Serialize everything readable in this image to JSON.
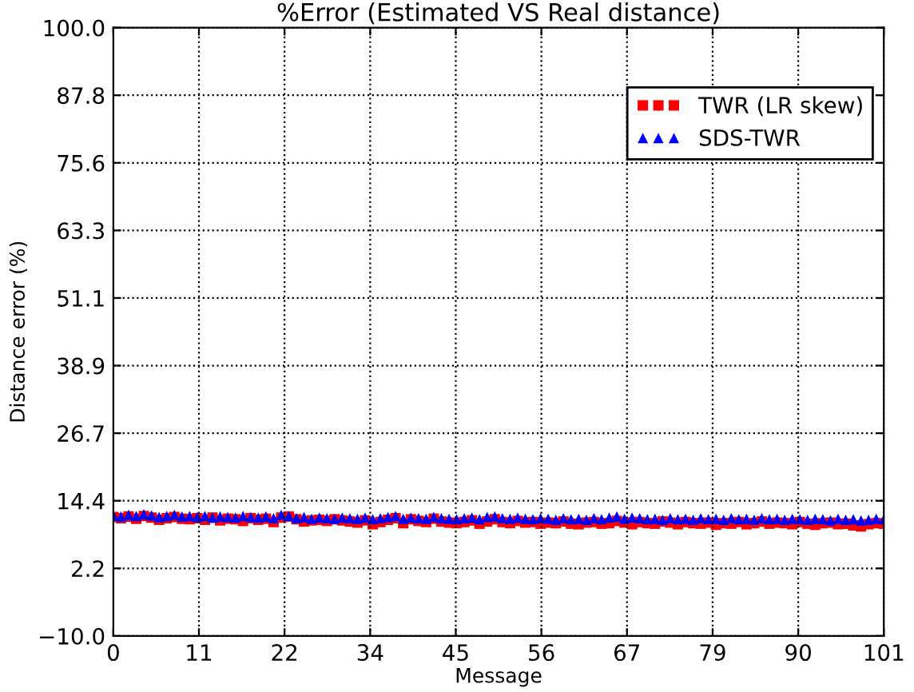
{
  "chart_data": {
    "type": "scatter",
    "title": "%Error (Estimated VS Real distance)",
    "xlabel": "Message",
    "ylabel": "Distance error (%)",
    "x": [
      0,
      1,
      2,
      3,
      4,
      5,
      6,
      7,
      8,
      9,
      10,
      11,
      12,
      13,
      14,
      15,
      16,
      17,
      18,
      19,
      20,
      21,
      22,
      23,
      24,
      25,
      26,
      27,
      28,
      29,
      30,
      31,
      32,
      33,
      34,
      35,
      36,
      37,
      38,
      39,
      40,
      41,
      42,
      43,
      44,
      45,
      46,
      47,
      48,
      49,
      50,
      51,
      52,
      53,
      54,
      55,
      56,
      57,
      58,
      59,
      60,
      61,
      62,
      63,
      64,
      65,
      66,
      67,
      68,
      69,
      70,
      71,
      72,
      73,
      74,
      75,
      76,
      77,
      78,
      79,
      80,
      81,
      82,
      83,
      84,
      85,
      86,
      87,
      88,
      89,
      90,
      91,
      92,
      93,
      94,
      95,
      96,
      97,
      98,
      99,
      100,
      101
    ],
    "series": [
      {
        "name": "TWR (LR skew)",
        "color": "#ff0000",
        "marker": "square",
        "values": [
          11.5,
          11.3,
          11.6,
          11.2,
          11.7,
          11.4,
          11.0,
          11.3,
          11.5,
          11.2,
          11.1,
          11.3,
          11.0,
          11.4,
          10.9,
          11.2,
          11.1,
          10.8,
          11.3,
          11.0,
          11.2,
          10.6,
          11.4,
          11.6,
          11.1,
          10.7,
          10.9,
          11.0,
          10.8,
          11.1,
          10.9,
          10.7,
          10.5,
          10.9,
          10.2,
          10.6,
          11.0,
          11.3,
          10.4,
          11.1,
          10.8,
          10.6,
          11.2,
          10.7,
          10.5,
          10.4,
          10.6,
          10.9,
          10.3,
          10.7,
          11.1,
          10.6,
          10.4,
          10.8,
          10.5,
          10.6,
          10.3,
          10.5,
          10.4,
          10.7,
          10.3,
          10.2,
          10.5,
          10.6,
          10.3,
          10.4,
          10.8,
          10.5,
          10.2,
          10.6,
          10.4,
          10.3,
          10.7,
          10.5,
          10.2,
          10.6,
          10.4,
          10.3,
          10.5,
          10.1,
          10.4,
          10.3,
          10.6,
          10.2,
          10.4,
          10.7,
          10.3,
          10.5,
          10.4,
          10.2,
          10.6,
          10.3,
          10.1,
          10.4,
          10.5,
          10.2,
          10.3,
          10.0,
          9.8,
          10.2,
          10.4,
          10.3
        ]
      },
      {
        "name": "SDS-TWR",
        "color": "#0000ff",
        "marker": "triangle",
        "values": [
          11.8,
          11.6,
          11.9,
          11.7,
          12.0,
          11.8,
          11.5,
          11.7,
          11.9,
          11.6,
          11.7,
          11.5,
          11.7,
          11.4,
          11.6,
          11.5,
          11.4,
          11.7,
          11.5,
          11.4,
          11.6,
          11.3,
          11.9,
          11.7,
          11.3,
          11.5,
          11.2,
          11.4,
          11.3,
          11.2,
          11.4,
          11.3,
          11.2,
          11.4,
          11.1,
          11.3,
          11.5,
          11.7,
          11.2,
          11.4,
          11.3,
          11.2,
          11.5,
          11.3,
          11.2,
          11.1,
          11.3,
          11.4,
          11.1,
          11.5,
          11.6,
          11.3,
          11.2,
          11.4,
          11.2,
          11.1,
          11.3,
          11.2,
          11.0,
          11.3,
          11.1,
          11.2,
          11.0,
          11.3,
          11.1,
          11.4,
          11.6,
          11.2,
          11.4,
          11.3,
          11.1,
          11.2,
          11.0,
          11.3,
          11.1,
          11.2,
          11.0,
          11.3,
          11.1,
          11.2,
          11.0,
          11.3,
          11.1,
          11.2,
          11.0,
          11.3,
          11.1,
          11.2,
          11.0,
          11.2,
          11.1,
          11.0,
          11.2,
          11.1,
          10.9,
          11.2,
          11.0,
          11.1,
          10.9,
          11.0,
          11.2,
          11.1
        ]
      }
    ],
    "xlim": [
      0,
      101
    ],
    "xticks": [
      0,
      {
        "value": 11.22,
        "label": "11"
      },
      {
        "value": 22.44,
        "label": "22"
      },
      {
        "value": 33.67,
        "label": "34"
      },
      {
        "value": 44.89,
        "label": "45"
      },
      {
        "value": 56.11,
        "label": "56"
      },
      {
        "value": 67.33,
        "label": "67"
      },
      {
        "value": 78.56,
        "label": "79"
      },
      {
        "value": 89.78,
        "label": "90"
      },
      101
    ],
    "ylim": [
      -10,
      100
    ],
    "yticks": [
      {
        "value": -10,
        "label": "−10.0"
      },
      {
        "value": 2.222,
        "label": "2.2"
      },
      {
        "value": 14.444,
        "label": "14.4"
      },
      {
        "value": 26.667,
        "label": "26.7"
      },
      {
        "value": 38.889,
        "label": "38.9"
      },
      {
        "value": 51.111,
        "label": "51.1"
      },
      {
        "value": 63.333,
        "label": "63.3"
      },
      {
        "value": 75.556,
        "label": "75.6"
      },
      {
        "value": 87.778,
        "label": "87.8"
      },
      {
        "value": 100,
        "label": "100.0"
      }
    ],
    "grid": true,
    "legend": "top right"
  }
}
